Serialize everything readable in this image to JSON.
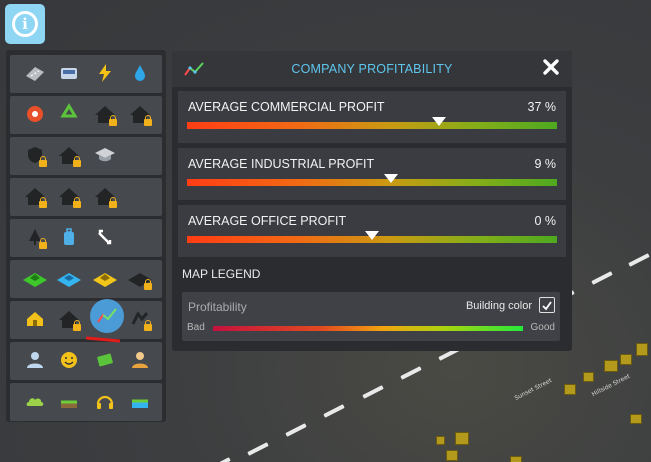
{
  "info_button": {
    "glyph": "i"
  },
  "toolbar": {
    "rows": [
      [
        "road-icon",
        "bus-icon",
        "electricity-icon",
        "water-icon"
      ],
      [
        "fire-icon",
        "recycle-icon",
        "locked-house-icon",
        "locked-house-icon"
      ],
      [
        "locked-shield-icon",
        "locked-house-icon",
        "education-icon"
      ],
      [
        "locked-building-icon",
        "locked-building-icon",
        "locked-building-icon"
      ],
      [
        "locked-tree-icon",
        "luggage-icon",
        "traffic-arrows-icon"
      ],
      [
        "residential-zone-icon",
        "commercial-zone-icon",
        "industrial-zone-icon",
        "office-zone-icon"
      ],
      [
        "home-icon",
        "locked-house-icon",
        "profitability-icon",
        "locked-house-icon"
      ],
      [
        "citizens-icon",
        "happiness-icon",
        "money-icon",
        "workers-icon"
      ],
      [
        "pollution-icon",
        "ground-icon",
        "noise-icon",
        "water-level-icon"
      ]
    ]
  },
  "panel": {
    "title": "COMPANY PROFITABILITY",
    "rows": [
      {
        "label": "AVERAGE COMMERCIAL PROFIT",
        "value": "37 %",
        "marker": 0.68
      },
      {
        "label": "AVERAGE INDUSTRIAL PROFIT",
        "value": "9 %",
        "marker": 0.55
      },
      {
        "label": "AVERAGE OFFICE PROFIT",
        "value": "0 %",
        "marker": 0.5
      }
    ],
    "legend_title": "MAP LEGEND",
    "legend": {
      "name": "Profitability",
      "building_color_label": "Building color",
      "building_color_checked": true,
      "bad_label": "Bad",
      "good_label": "Good"
    }
  },
  "map": {
    "street_1": "Sunset Street",
    "street_2": "Hillside Street"
  },
  "colors": {
    "accent": "#5fc6ee",
    "info_button": "#8fd6f4",
    "panel_bg": "#2a2c2f",
    "row_bg": "#3a3c41"
  }
}
